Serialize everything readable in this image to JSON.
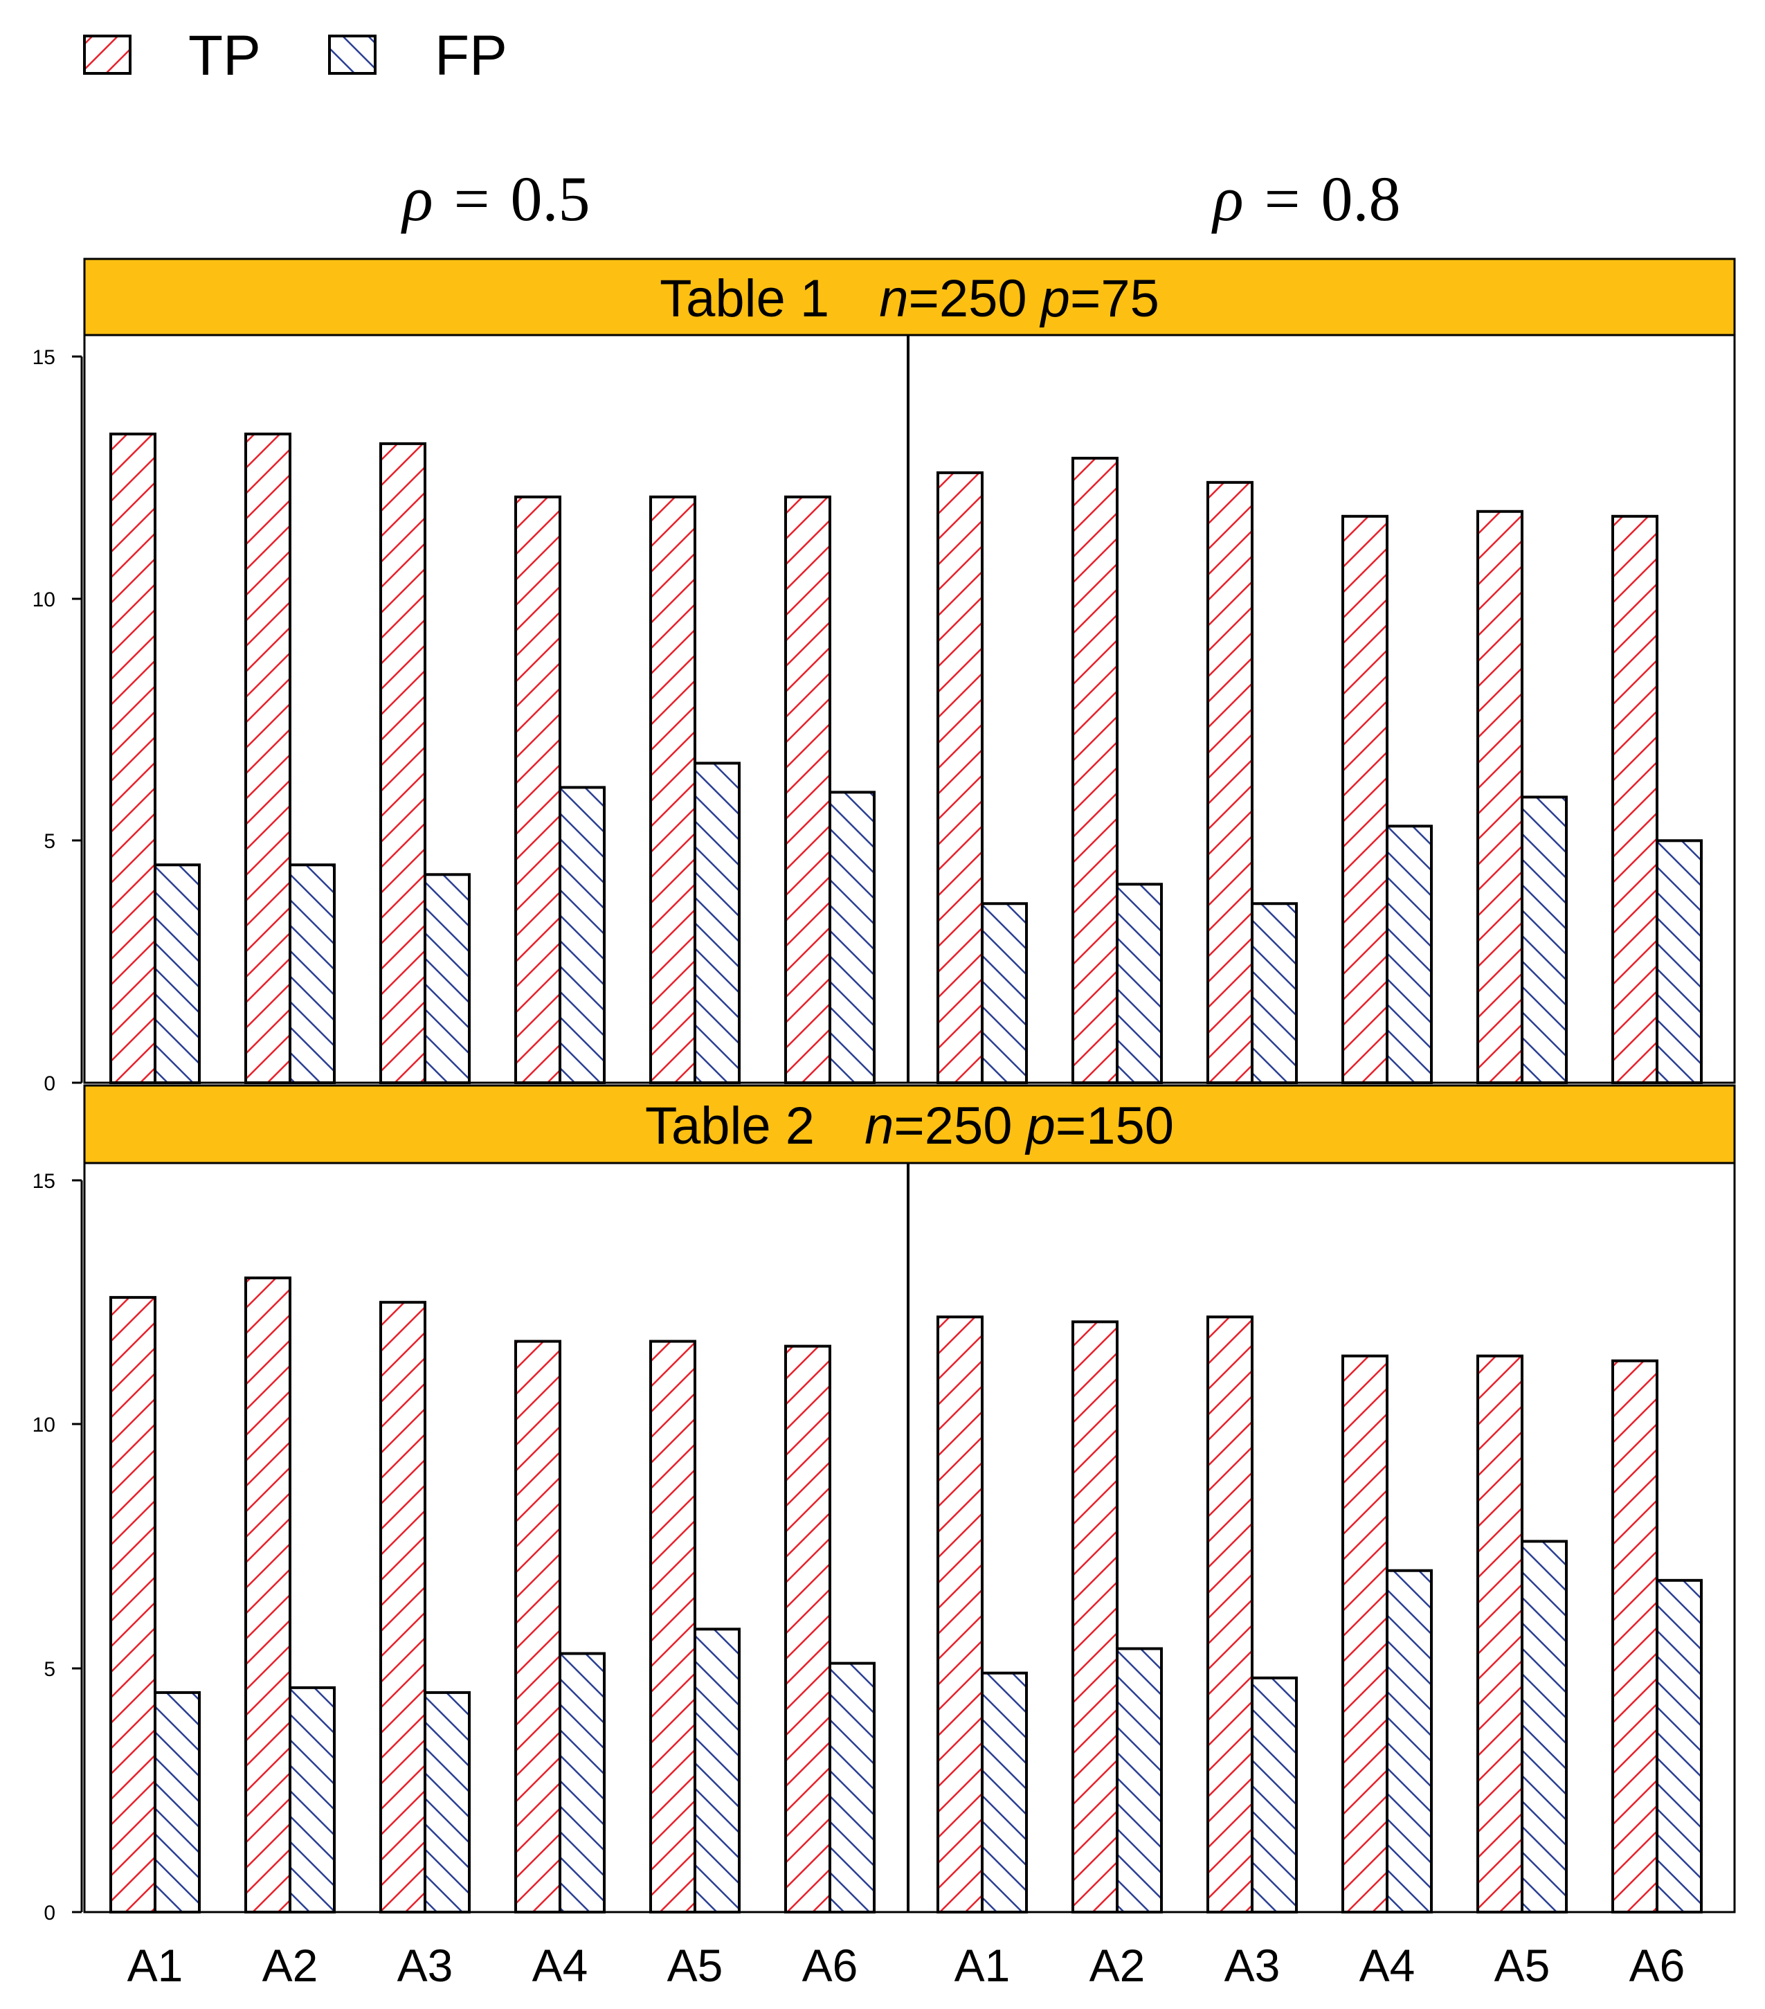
{
  "legend": {
    "items": [
      {
        "label": "TP",
        "color": "#e8202a",
        "pattern": "diag-up"
      },
      {
        "label": "FP",
        "color": "#2a3f93",
        "pattern": "diag-down"
      }
    ]
  },
  "columns": [
    {
      "symbol": "ρ",
      "operator": "=",
      "value": "0.5"
    },
    {
      "symbol": "ρ",
      "operator": "=",
      "value": "0.8"
    }
  ],
  "strip_color": "#fdbf12",
  "chart_data": {
    "type": "bar",
    "series_names": [
      "TP",
      "FP"
    ],
    "categories": [
      "A1",
      "A2",
      "A3",
      "A4",
      "A5",
      "A6"
    ],
    "ylim": [
      0,
      15
    ],
    "yticks": [
      "0",
      "5",
      "10",
      "15"
    ],
    "grid": false,
    "legend_position": "top-left",
    "panels": [
      {
        "strip": {
          "prefix": "Table 1",
          "n_label": "n",
          "n_value": "=250",
          "p_label": "p",
          "p_value": "=75"
        },
        "facets": [
          {
            "rho": "0.5",
            "series": [
              {
                "name": "TP",
                "values": [
                  13.4,
                  13.4,
                  13.2,
                  12.1,
                  12.1,
                  12.1
                ]
              },
              {
                "name": "FP",
                "values": [
                  4.5,
                  4.5,
                  4.3,
                  6.1,
                  6.6,
                  6.0
                ]
              }
            ]
          },
          {
            "rho": "0.8",
            "series": [
              {
                "name": "TP",
                "values": [
                  12.6,
                  12.9,
                  12.4,
                  11.7,
                  11.8,
                  11.7
                ]
              },
              {
                "name": "FP",
                "values": [
                  3.7,
                  4.1,
                  3.7,
                  5.3,
                  5.9,
                  5.0
                ]
              }
            ]
          }
        ]
      },
      {
        "strip": {
          "prefix": "Table 2",
          "n_label": "n",
          "n_value": "=250",
          "p_label": "p",
          "p_value": "=150"
        },
        "facets": [
          {
            "rho": "0.5",
            "series": [
              {
                "name": "TP",
                "values": [
                  12.6,
                  13.0,
                  12.5,
                  11.7,
                  11.7,
                  11.6
                ]
              },
              {
                "name": "FP",
                "values": [
                  4.5,
                  4.6,
                  4.5,
                  5.3,
                  5.8,
                  5.1
                ]
              }
            ]
          },
          {
            "rho": "0.8",
            "series": [
              {
                "name": "TP",
                "values": [
                  12.2,
                  12.1,
                  12.2,
                  11.4,
                  11.4,
                  11.3
                ]
              },
              {
                "name": "FP",
                "values": [
                  4.9,
                  5.4,
                  4.8,
                  7.0,
                  7.6,
                  6.8
                ]
              }
            ]
          }
        ]
      }
    ]
  }
}
